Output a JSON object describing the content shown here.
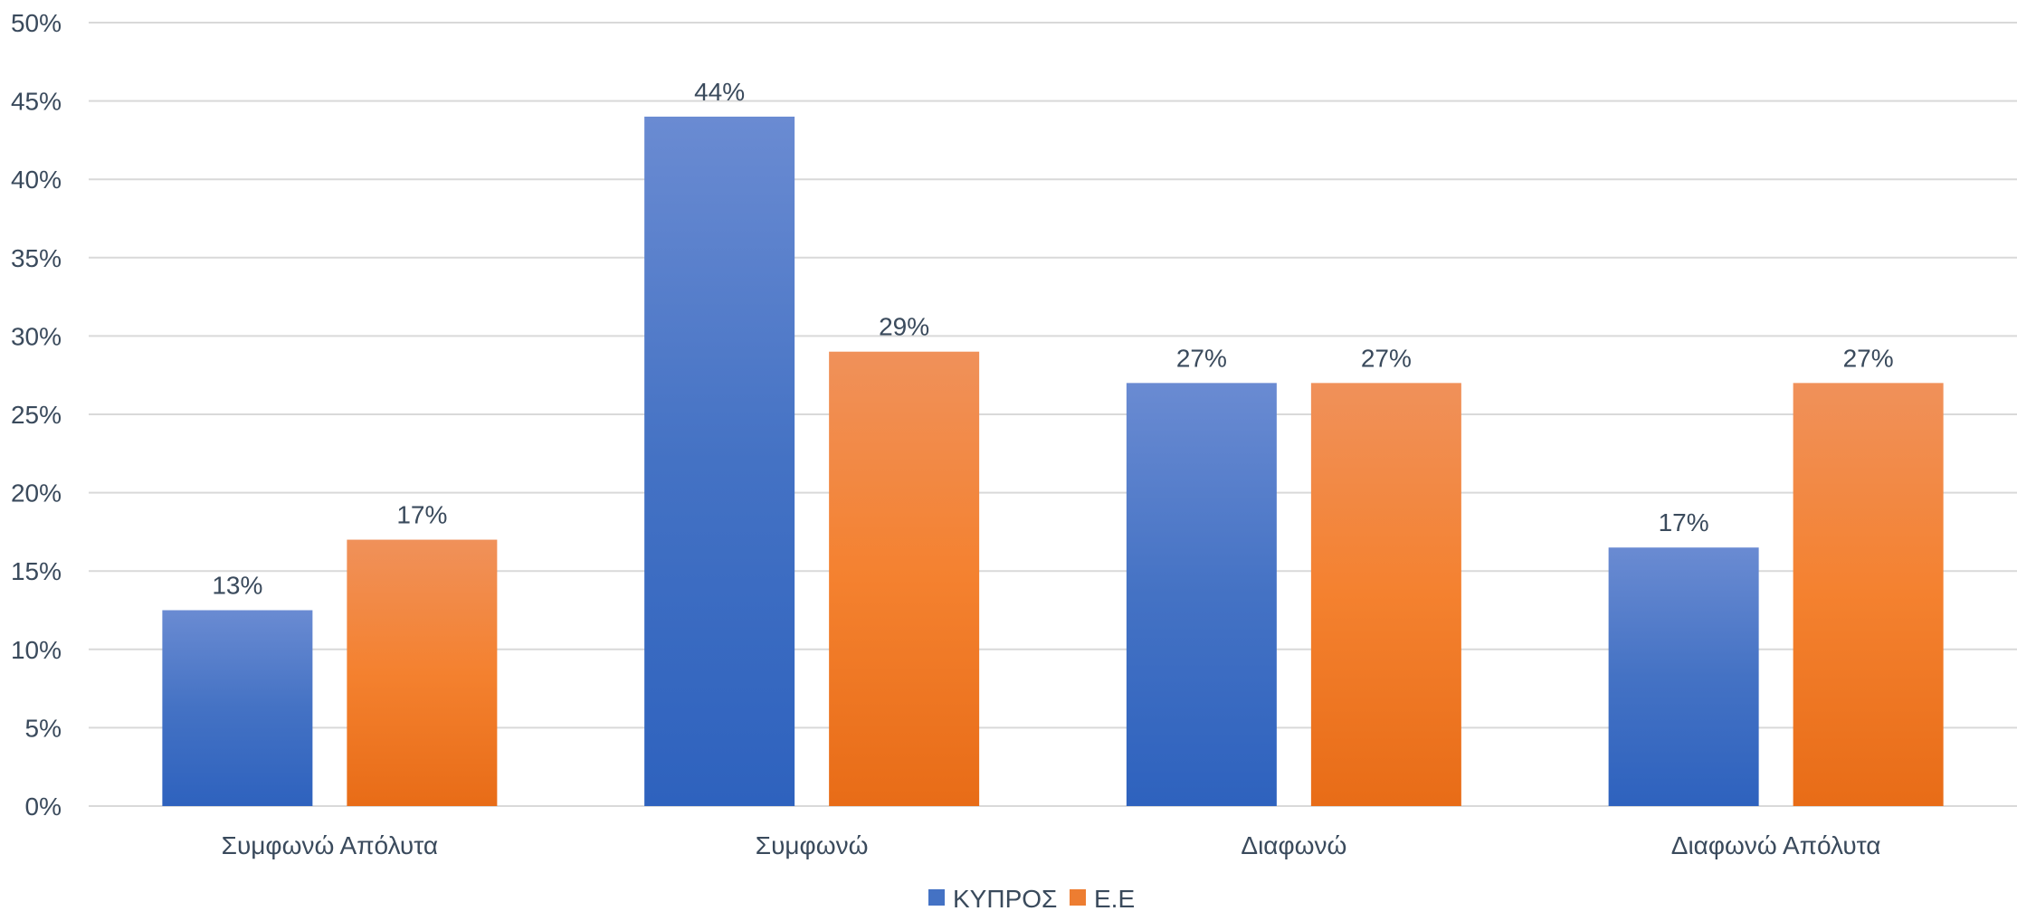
{
  "chart_data": {
    "type": "bar",
    "categories": [
      "Συμφωνώ Απόλυτα",
      "Συμφωνώ",
      "Διαφωνώ",
      "Διαφωνώ Απόλυτα"
    ],
    "series": [
      {
        "name": "ΚΥΠΡΟΣ",
        "color": "#4472c4",
        "values": [
          12.5,
          44,
          27,
          16.5
        ],
        "labels": [
          "13%",
          "44%",
          "27%",
          "17%"
        ]
      },
      {
        "name": "Ε.Ε",
        "color": "#ed7d31",
        "values": [
          17,
          29,
          27,
          27
        ],
        "labels": [
          "17%",
          "29%",
          "27%",
          "27%"
        ]
      }
    ],
    "ylim": [
      0,
      50
    ],
    "yticks": [
      0,
      5,
      10,
      15,
      20,
      25,
      30,
      35,
      40,
      45,
      50
    ],
    "ytick_labels": [
      "0%",
      "5%",
      "10%",
      "15%",
      "20%",
      "25%",
      "30%",
      "35%",
      "40%",
      "45%",
      "50%"
    ],
    "grid": true,
    "legend_position": "bottom-center"
  }
}
